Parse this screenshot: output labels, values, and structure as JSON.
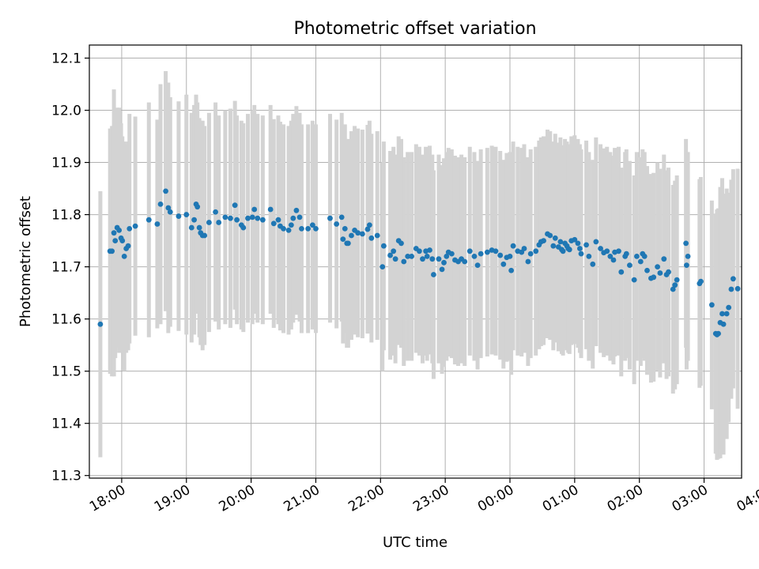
{
  "chart_data": {
    "type": "scatter",
    "title": "Photometric offset variation",
    "xlabel": "UTC time",
    "ylabel": "Photometric offset",
    "x_unit": "hours UTC (values >= 24 are after midnight)",
    "xlim": [
      17.5,
      27.58
    ],
    "ylim": [
      11.295,
      12.125
    ],
    "x_ticks": [
      {
        "value": 18,
        "label": "18:00"
      },
      {
        "value": 19,
        "label": "19:00"
      },
      {
        "value": 20,
        "label": "20:00"
      },
      {
        "value": 21,
        "label": "21:00"
      },
      {
        "value": 22,
        "label": "22:00"
      },
      {
        "value": 23,
        "label": "23:00"
      },
      {
        "value": 24,
        "label": "00:00"
      },
      {
        "value": 25,
        "label": "01:00"
      },
      {
        "value": 26,
        "label": "02:00"
      },
      {
        "value": 27,
        "label": "03:00"
      },
      {
        "value": 28,
        "label": "04:00"
      }
    ],
    "y_ticks": [
      {
        "value": 11.3,
        "label": "11.3"
      },
      {
        "value": 11.4,
        "label": "11.4"
      },
      {
        "value": 11.5,
        "label": "11.5"
      },
      {
        "value": 11.6,
        "label": "11.6"
      },
      {
        "value": 11.7,
        "label": "11.7"
      },
      {
        "value": 11.8,
        "label": "11.8"
      },
      {
        "value": 11.9,
        "label": "11.9"
      },
      {
        "value": 12.0,
        "label": "12.0"
      },
      {
        "value": 12.1,
        "label": "12.1"
      }
    ],
    "grid": true,
    "point_color": "#1f77b4",
    "errorbar_color": "#d3d3d3",
    "points": [
      [
        17.67,
        11.59,
        0.255
      ],
      [
        17.82,
        11.73,
        0.235
      ],
      [
        17.85,
        11.73,
        0.24
      ],
      [
        17.88,
        11.765,
        0.275
      ],
      [
        17.9,
        11.75,
        0.225
      ],
      [
        17.93,
        11.775,
        0.23
      ],
      [
        17.96,
        11.77,
        0.235
      ],
      [
        17.99,
        11.755,
        0.22
      ],
      [
        18.01,
        11.75,
        0.2
      ],
      [
        18.04,
        11.72,
        0.22
      ],
      [
        18.07,
        11.735,
        0.2
      ],
      [
        18.1,
        11.74,
        0.2
      ],
      [
        18.12,
        11.773,
        0.22
      ],
      [
        18.21,
        11.778,
        0.21
      ],
      [
        18.42,
        11.79,
        0.225
      ],
      [
        18.55,
        11.782,
        0.2
      ],
      [
        18.6,
        11.82,
        0.23
      ],
      [
        18.68,
        11.845,
        0.23
      ],
      [
        18.72,
        11.813,
        0.24
      ],
      [
        18.75,
        11.805,
        0.22
      ],
      [
        18.88,
        11.797,
        0.22
      ],
      [
        19.0,
        11.8,
        0.23
      ],
      [
        19.08,
        11.775,
        0.22
      ],
      [
        19.12,
        11.79,
        0.22
      ],
      [
        19.15,
        11.82,
        0.21
      ],
      [
        19.17,
        11.815,
        0.2
      ],
      [
        19.2,
        11.775,
        0.21
      ],
      [
        19.22,
        11.765,
        0.215
      ],
      [
        19.25,
        11.76,
        0.22
      ],
      [
        19.28,
        11.76,
        0.21
      ],
      [
        19.35,
        11.785,
        0.21
      ],
      [
        19.45,
        11.805,
        0.21
      ],
      [
        19.5,
        11.785,
        0.205
      ],
      [
        19.6,
        11.795,
        0.205
      ],
      [
        19.68,
        11.793,
        0.21
      ],
      [
        19.75,
        11.818,
        0.2
      ],
      [
        19.78,
        11.79,
        0.2
      ],
      [
        19.85,
        11.78,
        0.2
      ],
      [
        19.88,
        11.775,
        0.2
      ],
      [
        19.95,
        11.793,
        0.2
      ],
      [
        20.02,
        11.795,
        0.205
      ],
      [
        20.05,
        11.81,
        0.2
      ],
      [
        20.1,
        11.793,
        0.2
      ],
      [
        20.18,
        11.79,
        0.2
      ],
      [
        20.3,
        11.81,
        0.2
      ],
      [
        20.35,
        11.783,
        0.2
      ],
      [
        20.42,
        11.79,
        0.2
      ],
      [
        20.45,
        11.778,
        0.2
      ],
      [
        20.5,
        11.773,
        0.2
      ],
      [
        20.58,
        11.77,
        0.2
      ],
      [
        20.62,
        11.78,
        0.2
      ],
      [
        20.65,
        11.793,
        0.2
      ],
      [
        20.7,
        11.808,
        0.2
      ],
      [
        20.75,
        11.795,
        0.2
      ],
      [
        20.78,
        11.773,
        0.2
      ],
      [
        20.88,
        11.773,
        0.2
      ],
      [
        20.95,
        11.78,
        0.2
      ],
      [
        21.0,
        11.773,
        0.2
      ],
      [
        21.22,
        11.793,
        0.2
      ],
      [
        21.32,
        11.782,
        0.2
      ],
      [
        21.4,
        11.795,
        0.2
      ],
      [
        21.42,
        11.753,
        0.2
      ],
      [
        21.45,
        11.773,
        0.2
      ],
      [
        21.48,
        11.745,
        0.2
      ],
      [
        21.5,
        11.745,
        0.2
      ],
      [
        21.55,
        11.76,
        0.2
      ],
      [
        21.6,
        11.77,
        0.2
      ],
      [
        21.65,
        11.765,
        0.2
      ],
      [
        21.72,
        11.763,
        0.2
      ],
      [
        21.8,
        11.772,
        0.2
      ],
      [
        21.83,
        11.78,
        0.2
      ],
      [
        21.86,
        11.755,
        0.2
      ],
      [
        21.95,
        11.76,
        0.2
      ],
      [
        22.05,
        11.74,
        0.2
      ],
      [
        22.03,
        11.7,
        0.2
      ],
      [
        22.15,
        11.722,
        0.2
      ],
      [
        22.2,
        11.73,
        0.2
      ],
      [
        22.23,
        11.715,
        0.2
      ],
      [
        22.28,
        11.75,
        0.2
      ],
      [
        22.32,
        11.745,
        0.2
      ],
      [
        22.36,
        11.71,
        0.2
      ],
      [
        22.42,
        11.72,
        0.2
      ],
      [
        22.48,
        11.72,
        0.2
      ],
      [
        22.55,
        11.735,
        0.2
      ],
      [
        22.6,
        11.73,
        0.2
      ],
      [
        22.65,
        11.715,
        0.2
      ],
      [
        22.7,
        11.73,
        0.2
      ],
      [
        22.72,
        11.72,
        0.2
      ],
      [
        22.76,
        11.732,
        0.2
      ],
      [
        22.8,
        11.715,
        0.2
      ],
      [
        22.82,
        11.685,
        0.2
      ],
      [
        22.9,
        11.715,
        0.2
      ],
      [
        22.95,
        11.695,
        0.2
      ],
      [
        22.98,
        11.708,
        0.2
      ],
      [
        23.02,
        11.72,
        0.2
      ],
      [
        23.05,
        11.728,
        0.2
      ],
      [
        23.1,
        11.725,
        0.2
      ],
      [
        23.15,
        11.713,
        0.2
      ],
      [
        23.2,
        11.71,
        0.2
      ],
      [
        23.25,
        11.715,
        0.2
      ],
      [
        23.3,
        11.71,
        0.2
      ],
      [
        23.38,
        11.73,
        0.2
      ],
      [
        23.45,
        11.72,
        0.2
      ],
      [
        23.5,
        11.703,
        0.2
      ],
      [
        23.55,
        11.725,
        0.2
      ],
      [
        23.65,
        11.728,
        0.2
      ],
      [
        23.72,
        11.732,
        0.2
      ],
      [
        23.78,
        11.73,
        0.2
      ],
      [
        23.85,
        11.722,
        0.2
      ],
      [
        23.9,
        11.705,
        0.2
      ],
      [
        23.95,
        11.718,
        0.2
      ],
      [
        24.0,
        11.72,
        0.2
      ],
      [
        24.02,
        11.693,
        0.2
      ],
      [
        24.05,
        11.74,
        0.2
      ],
      [
        24.12,
        11.73,
        0.2
      ],
      [
        24.18,
        11.728,
        0.2
      ],
      [
        24.22,
        11.735,
        0.2
      ],
      [
        24.28,
        11.71,
        0.2
      ],
      [
        24.32,
        11.725,
        0.2
      ],
      [
        24.4,
        11.73,
        0.2
      ],
      [
        24.45,
        11.742,
        0.2
      ],
      [
        24.48,
        11.748,
        0.2
      ],
      [
        24.52,
        11.75,
        0.2
      ],
      [
        24.58,
        11.763,
        0.2
      ],
      [
        24.62,
        11.76,
        0.2
      ],
      [
        24.67,
        11.74,
        0.2
      ],
      [
        24.7,
        11.755,
        0.2
      ],
      [
        24.75,
        11.738,
        0.2
      ],
      [
        24.78,
        11.748,
        0.2
      ],
      [
        24.8,
        11.733,
        0.2
      ],
      [
        24.82,
        11.73,
        0.2
      ],
      [
        24.85,
        11.745,
        0.2
      ],
      [
        24.88,
        11.74,
        0.2
      ],
      [
        24.9,
        11.735,
        0.2
      ],
      [
        24.92,
        11.733,
        0.2
      ],
      [
        24.95,
        11.75,
        0.2
      ],
      [
        25.0,
        11.752,
        0.2
      ],
      [
        25.05,
        11.745,
        0.2
      ],
      [
        25.08,
        11.735,
        0.2
      ],
      [
        25.1,
        11.725,
        0.2
      ],
      [
        25.18,
        11.742,
        0.2
      ],
      [
        25.22,
        11.72,
        0.2
      ],
      [
        25.28,
        11.705,
        0.2
      ],
      [
        25.33,
        11.748,
        0.2
      ],
      [
        25.4,
        11.735,
        0.2
      ],
      [
        25.45,
        11.727,
        0.2
      ],
      [
        25.5,
        11.73,
        0.2
      ],
      [
        25.55,
        11.72,
        0.2
      ],
      [
        25.6,
        11.713,
        0.2
      ],
      [
        25.62,
        11.728,
        0.2
      ],
      [
        25.68,
        11.73,
        0.2
      ],
      [
        25.72,
        11.69,
        0.2
      ],
      [
        25.78,
        11.72,
        0.2
      ],
      [
        25.8,
        11.725,
        0.2
      ],
      [
        25.85,
        11.703,
        0.2
      ],
      [
        25.92,
        11.675,
        0.2
      ],
      [
        25.96,
        11.72,
        0.2
      ],
      [
        26.02,
        11.71,
        0.2
      ],
      [
        26.05,
        11.725,
        0.2
      ],
      [
        26.08,
        11.72,
        0.2
      ],
      [
        26.12,
        11.693,
        0.2
      ],
      [
        26.18,
        11.678,
        0.2
      ],
      [
        26.22,
        11.68,
        0.2
      ],
      [
        26.28,
        11.7,
        0.2
      ],
      [
        26.32,
        11.688,
        0.2
      ],
      [
        26.38,
        11.715,
        0.2
      ],
      [
        26.42,
        11.685,
        0.2
      ],
      [
        26.45,
        11.69,
        0.2
      ],
      [
        26.52,
        11.657,
        0.2
      ],
      [
        26.55,
        11.665,
        0.2
      ],
      [
        26.58,
        11.675,
        0.2
      ],
      [
        26.72,
        11.745,
        0.2
      ],
      [
        26.75,
        11.72,
        0.2
      ],
      [
        26.73,
        11.703,
        0.2
      ],
      [
        26.93,
        11.668,
        0.2
      ],
      [
        26.95,
        11.672,
        0.2
      ],
      [
        27.12,
        11.627,
        0.2
      ],
      [
        27.18,
        11.572,
        0.23
      ],
      [
        27.2,
        11.57,
        0.24
      ],
      [
        27.22,
        11.572,
        0.24
      ],
      [
        27.25,
        11.593,
        0.26
      ],
      [
        27.28,
        11.61,
        0.26
      ],
      [
        27.3,
        11.59,
        0.25
      ],
      [
        27.35,
        11.61,
        0.24
      ],
      [
        27.38,
        11.622,
        0.22
      ],
      [
        27.42,
        11.657,
        0.21
      ],
      [
        27.45,
        11.677,
        0.21
      ],
      [
        27.52,
        11.658,
        0.23
      ]
    ]
  }
}
